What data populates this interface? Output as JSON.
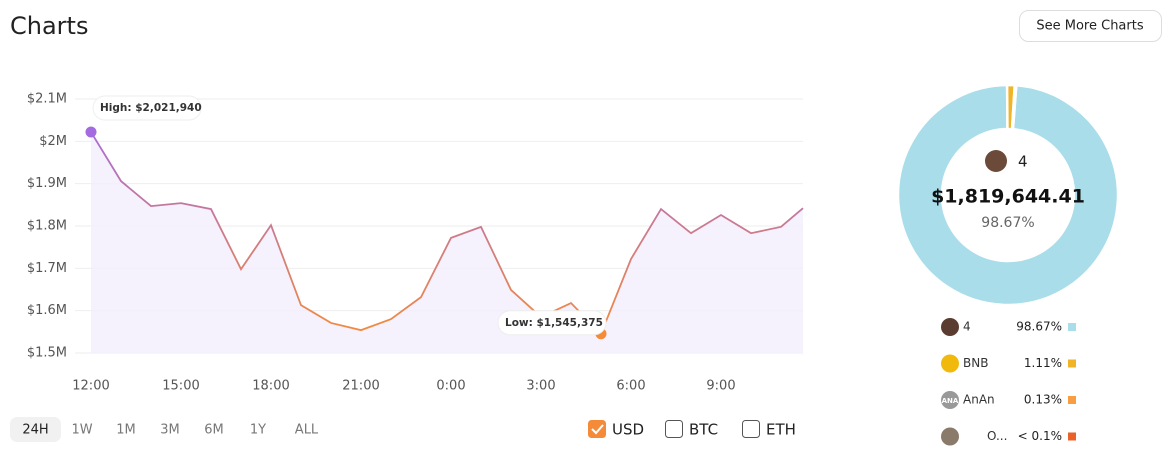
{
  "header": {
    "title": "Charts",
    "button": "See More Charts"
  },
  "chart_data": [
    {
      "type": "line",
      "categories": [
        "12:00",
        null,
        null,
        "15:00",
        null,
        null,
        "18:00",
        null,
        null,
        "21:00",
        null,
        null,
        "0:00",
        null,
        null,
        "3:00",
        null,
        null,
        "6:00",
        null,
        null,
        "9:00",
        null,
        null,
        null
      ],
      "values": [
        2021940,
        1906000,
        1847000,
        1854000,
        1840000,
        1698000,
        1802000,
        1613000,
        1571000,
        1554000,
        1580000,
        1632000,
        1772000,
        1798000,
        1649000,
        1585000,
        1618000,
        1545375,
        1722000,
        1840000,
        1783000,
        1826000,
        1783000,
        1798000,
        1842000
      ],
      "value_labels": [
        "High: $2,021,940",
        null,
        null,
        null,
        null,
        null,
        null,
        null,
        null,
        null,
        null,
        null,
        null,
        null,
        null,
        null,
        null,
        "Low: $1,545,375",
        null,
        null,
        null,
        null,
        null,
        null,
        null
      ],
      "ylim": [
        1500000,
        2100000
      ],
      "yticks": [
        {
          "value": 1500000,
          "label": "$1.5M"
        },
        {
          "value": 1600000,
          "label": "$1.6M"
        },
        {
          "value": 1700000,
          "label": "$1.7M"
        },
        {
          "value": 1800000,
          "label": "$1.8M"
        },
        {
          "value": 1900000,
          "label": "$1.9M"
        },
        {
          "value": 2000000,
          "label": "$2M"
        },
        {
          "value": 2100000,
          "label": "$2.1M"
        }
      ],
      "grid": true,
      "colors": [
        "#a46ae0",
        "#f58b38"
      ],
      "fill": "#f3edfd"
    },
    {
      "type": "donut",
      "categories": [
        "4",
        "BNB",
        "AnAn",
        "O..."
      ],
      "values": [
        98.67,
        1.11,
        0.13,
        0.09
      ],
      "value_labels": [
        "98.67%",
        "1.11%",
        "0.13%",
        "< 0.1%"
      ],
      "colors": [
        "#a8dde9",
        "#f0b429",
        "#f59e42",
        "#e8622a"
      ],
      "center_value": "$1,819,644.41",
      "icon_text": "ANA"
    }
  ],
  "ranges": [
    {
      "label": "24H",
      "active": true
    },
    {
      "label": "1W",
      "active": false
    },
    {
      "label": "1M",
      "active": false
    },
    {
      "label": "3M",
      "active": false
    },
    {
      "label": "6M",
      "active": false
    },
    {
      "label": "1Y",
      "active": false
    },
    {
      "label": "ALL",
      "active": false
    }
  ],
  "currencies": [
    {
      "label": "USD",
      "checked": true
    },
    {
      "label": "BTC",
      "checked": false
    },
    {
      "label": "ETH",
      "checked": false
    }
  ]
}
